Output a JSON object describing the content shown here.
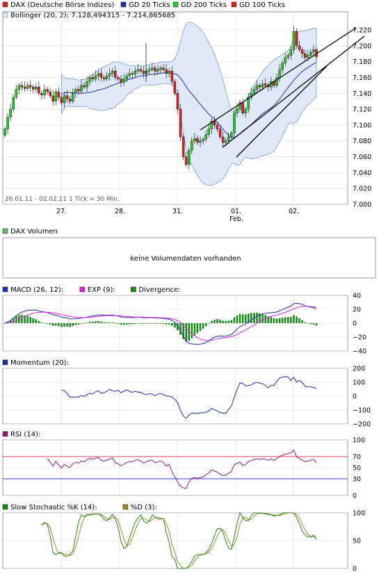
{
  "colors": {
    "up": "#22cc22",
    "down": "#dd2222",
    "band_fill": "#dfe9f8",
    "band_stroke": "#6f8fc4",
    "gd20": "#1a2fa8",
    "macd": "#1a2fa8",
    "exp": "#e020e0",
    "divergence": "#1a8a1a",
    "rsi_line": "#8a1a7a",
    "rsi70": "#e04060",
    "rsi30": "#3040c0",
    "stoch_k": "#1a8a1a",
    "stoch_d": "#a08a20",
    "grid": "#d8d8d8"
  },
  "legend_main": [
    {
      "label": "DAX (Deutsche Börse Indizes)",
      "color": "#dd2222"
    },
    {
      "label": "GD 20 Ticks",
      "color": "#1a2fa8"
    },
    {
      "label": "GD 200 Ticks",
      "color": "#22cc22"
    },
    {
      "label": "GD 100 Ticks",
      "color": "#dd2222"
    }
  ],
  "legend_bollinger": "Bollinger (20, 2): 7.128,494315 - 7.214,865685",
  "info_text": "26.01.11 - 02.02.11   1 Tick = 30 Min.",
  "chart_data": {
    "type": "candlestick",
    "x_labels": [
      "27.",
      "28.",
      "31.",
      "01.",
      "02."
    ],
    "x_sub_label": "Feb.",
    "ylim": [
      7000,
      7240
    ],
    "yticks": [
      "7.220",
      "7.200",
      "7.180",
      "7.160",
      "7.140",
      "7.120",
      "7.100",
      "7.080",
      "7.060",
      "7.040",
      "7.020",
      "7.000"
    ],
    "closes": [
      7095,
      7110,
      7120,
      7135,
      7145,
      7150,
      7148,
      7146,
      7150,
      7148,
      7145,
      7148,
      7140,
      7138,
      7145,
      7142,
      7137,
      7130,
      7142,
      7135,
      7128,
      7137,
      7133,
      7130,
      7140,
      7145,
      7143,
      7150,
      7148,
      7155,
      7160,
      7158,
      7162,
      7165,
      7160,
      7158,
      7162,
      7165,
      7168,
      7160,
      7158,
      7154,
      7158,
      7162,
      7165,
      7164,
      7168,
      7170,
      7168,
      7165,
      7168,
      7170,
      7172,
      7168,
      7170,
      7172,
      7170,
      7165,
      7168,
      7155,
      7140,
      7120,
      7085,
      7060,
      7050,
      7068,
      7080,
      7083,
      7078,
      7080,
      7082,
      7088,
      7095,
      7105,
      7100,
      7095,
      7085,
      7078,
      7080,
      7085,
      7090,
      7115,
      7120,
      7128,
      7115,
      7120,
      7135,
      7140,
      7145,
      7150,
      7148,
      7152,
      7150,
      7148,
      7155,
      7150,
      7160,
      7170,
      7178,
      7185,
      7188,
      7195,
      7218,
      7200,
      7195,
      7190,
      7185,
      7188,
      7192,
      7195,
      7186
    ],
    "volume_message": "keine Volumendaten vorhanden",
    "panels": {
      "volume": {
        "label": "DAX Volumen"
      },
      "macd": {
        "legend": [
          "MACD (26, 12):",
          "EXP (9):",
          "Divergence:"
        ],
        "yticks": [
          "40",
          "20",
          "0",
          "−20",
          "−40"
        ],
        "ylim": [
          -40,
          40
        ]
      },
      "momentum": {
        "legend": [
          "Momentum (20):"
        ],
        "yticks": [
          "200",
          "100",
          "0",
          "−100",
          "−200"
        ],
        "ylim": [
          -200,
          200
        ]
      },
      "rsi": {
        "legend": [
          "RSI (14):"
        ],
        "yticks": [
          "100",
          "70",
          "50",
          "30",
          "0"
        ],
        "ylim": [
          0,
          100
        ]
      },
      "stoch": {
        "legend": [
          "Slow Stochastic %K (14):",
          "%D (3):"
        ],
        "yticks": [
          "100",
          "50",
          "0"
        ],
        "ylim": [
          0,
          100
        ]
      }
    }
  }
}
